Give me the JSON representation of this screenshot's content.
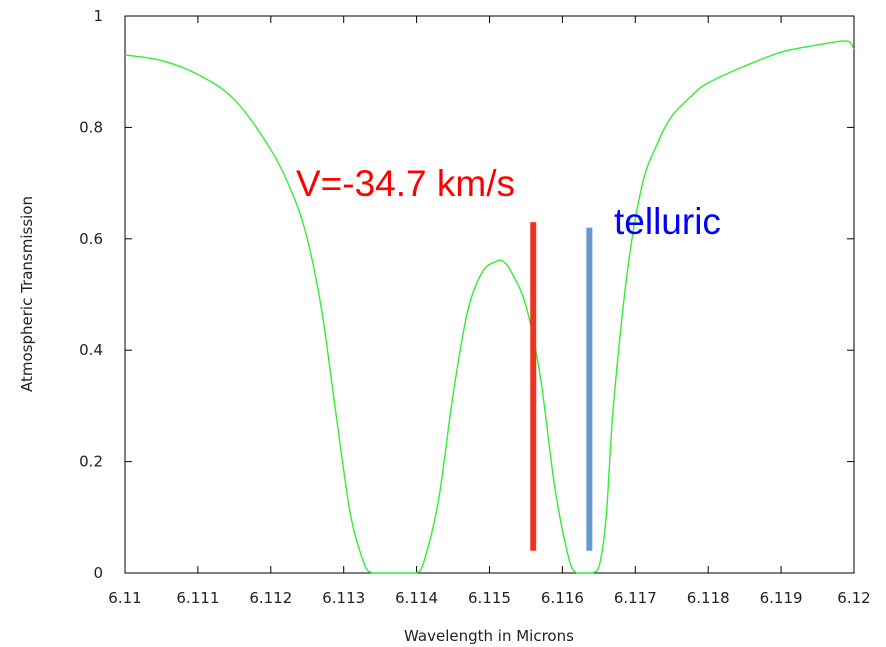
{
  "chart_data": {
    "type": "line",
    "xlabel": "Wavelength in Microns",
    "ylabel": "Atmospheric Transmission",
    "xlim": [
      6.11,
      6.12
    ],
    "ylim": [
      0,
      1
    ],
    "x_ticks": [
      "6.11",
      "6.111",
      "6.112",
      "6.113",
      "6.114",
      "6.115",
      "6.116",
      "6.117",
      "6.118",
      "6.119",
      "6.12"
    ],
    "y_ticks": [
      "0",
      "0.2",
      "0.4",
      "0.6",
      "0.8",
      "1"
    ],
    "grid": false,
    "series": [
      {
        "color": "#33ee33",
        "x": [
          6.11,
          6.1105,
          6.111,
          6.1115,
          6.112,
          6.1123,
          6.1125,
          6.1127,
          6.1129,
          6.1131,
          6.1133,
          6.1134,
          6.1135,
          6.1137,
          6.1139,
          6.114,
          6.1141,
          6.1143,
          6.1145,
          6.1147,
          6.1149,
          6.1151,
          6.1152,
          6.1153,
          6.1155,
          6.1157,
          6.1159,
          6.1161,
          6.1162,
          6.1163,
          6.1164,
          6.1165,
          6.1166,
          6.1167,
          6.1169,
          6.1171,
          6.1173,
          6.1175,
          6.1178,
          6.118,
          6.1185,
          6.119,
          6.1195,
          6.1199,
          6.12
        ],
        "y": [
          0.93,
          0.92,
          0.895,
          0.85,
          0.76,
          0.68,
          0.6,
          0.47,
          0.28,
          0.1,
          0.01,
          0.0,
          0.0,
          0.0,
          0.0,
          0.0,
          0.02,
          0.13,
          0.32,
          0.47,
          0.54,
          0.56,
          0.558,
          0.54,
          0.48,
          0.35,
          0.15,
          0.02,
          0.0,
          0.0,
          0.0,
          0.01,
          0.1,
          0.3,
          0.55,
          0.7,
          0.77,
          0.82,
          0.86,
          0.88,
          0.91,
          0.935,
          0.948,
          0.955,
          0.94
        ]
      }
    ],
    "markers": [
      {
        "label": "V=-34.7 km/s",
        "x": 6.1156,
        "y_bottom": 0.04,
        "y_top": 0.63,
        "color": "#ee3322"
      },
      {
        "label": "telluric",
        "x": 6.11637,
        "y_bottom": 0.04,
        "y_top": 0.62,
        "color": "#6699cc"
      }
    ],
    "annotations": [
      {
        "text": "V=-34.7 km/s",
        "color": "#ff0000"
      },
      {
        "text": "telluric",
        "color": "#0000ff"
      }
    ]
  }
}
